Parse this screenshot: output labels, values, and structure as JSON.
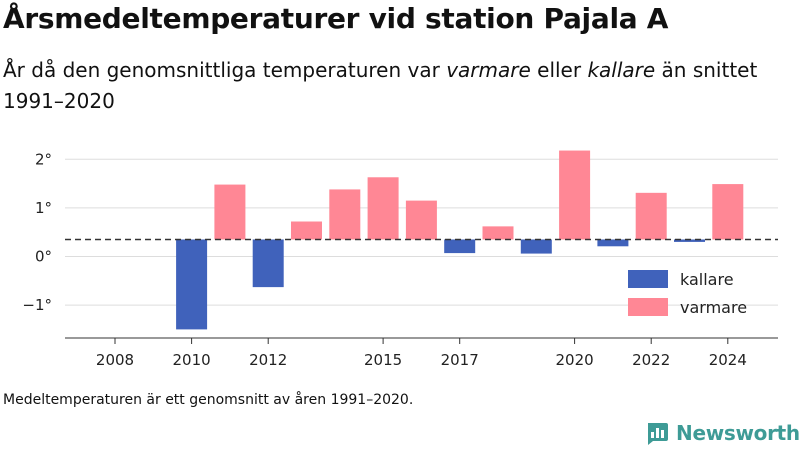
{
  "header": {
    "title": "Årsmedeltemperaturer vid station Pajala A",
    "subtitle_parts": [
      "År då den genomsnittliga temperaturen var ",
      "varmare",
      " eller ",
      "kallare",
      " än snittet 1991–2020"
    ]
  },
  "footnote": "Medeltemperaturen är ett genomsnitt av åren 1991–2020.",
  "brand": {
    "name": "Newsworthy"
  },
  "colors": {
    "kallare": "#4062bb",
    "varmare": "#ff8795",
    "baseline": "#333333",
    "grid": "#dddddd"
  },
  "chart_data": {
    "type": "bar",
    "x": [
      2008,
      2009,
      2010,
      2011,
      2012,
      2013,
      2014,
      2015,
      2016,
      2017,
      2018,
      2019,
      2020,
      2021,
      2022,
      2023,
      2024
    ],
    "values": [
      null,
      null,
      -1.5,
      1.48,
      -0.63,
      0.72,
      1.38,
      1.63,
      1.15,
      0.07,
      0.62,
      0.06,
      2.18,
      0.21,
      1.31,
      0.3,
      1.49
    ],
    "category": [
      null,
      null,
      "kallare",
      "varmare",
      "kallare",
      "varmare",
      "varmare",
      "varmare",
      "varmare",
      "kallare",
      "varmare",
      "kallare",
      "varmare",
      "kallare",
      "varmare",
      "kallare",
      "varmare"
    ],
    "baseline": 0.35,
    "yticks": [
      2,
      1,
      0,
      -1
    ],
    "ytick_labels": [
      "2°",
      "1°",
      "0°",
      "−1°"
    ],
    "xticks": [
      2008,
      2010,
      2012,
      2015,
      2017,
      2020,
      2022,
      2024
    ],
    "ylim": [
      -1.65,
      2.45
    ],
    "grid": true,
    "legend": {
      "placement": "bottom-right",
      "entries": [
        {
          "key": "kallare",
          "label": "kallare"
        },
        {
          "key": "varmare",
          "label": "varmare"
        }
      ]
    }
  }
}
